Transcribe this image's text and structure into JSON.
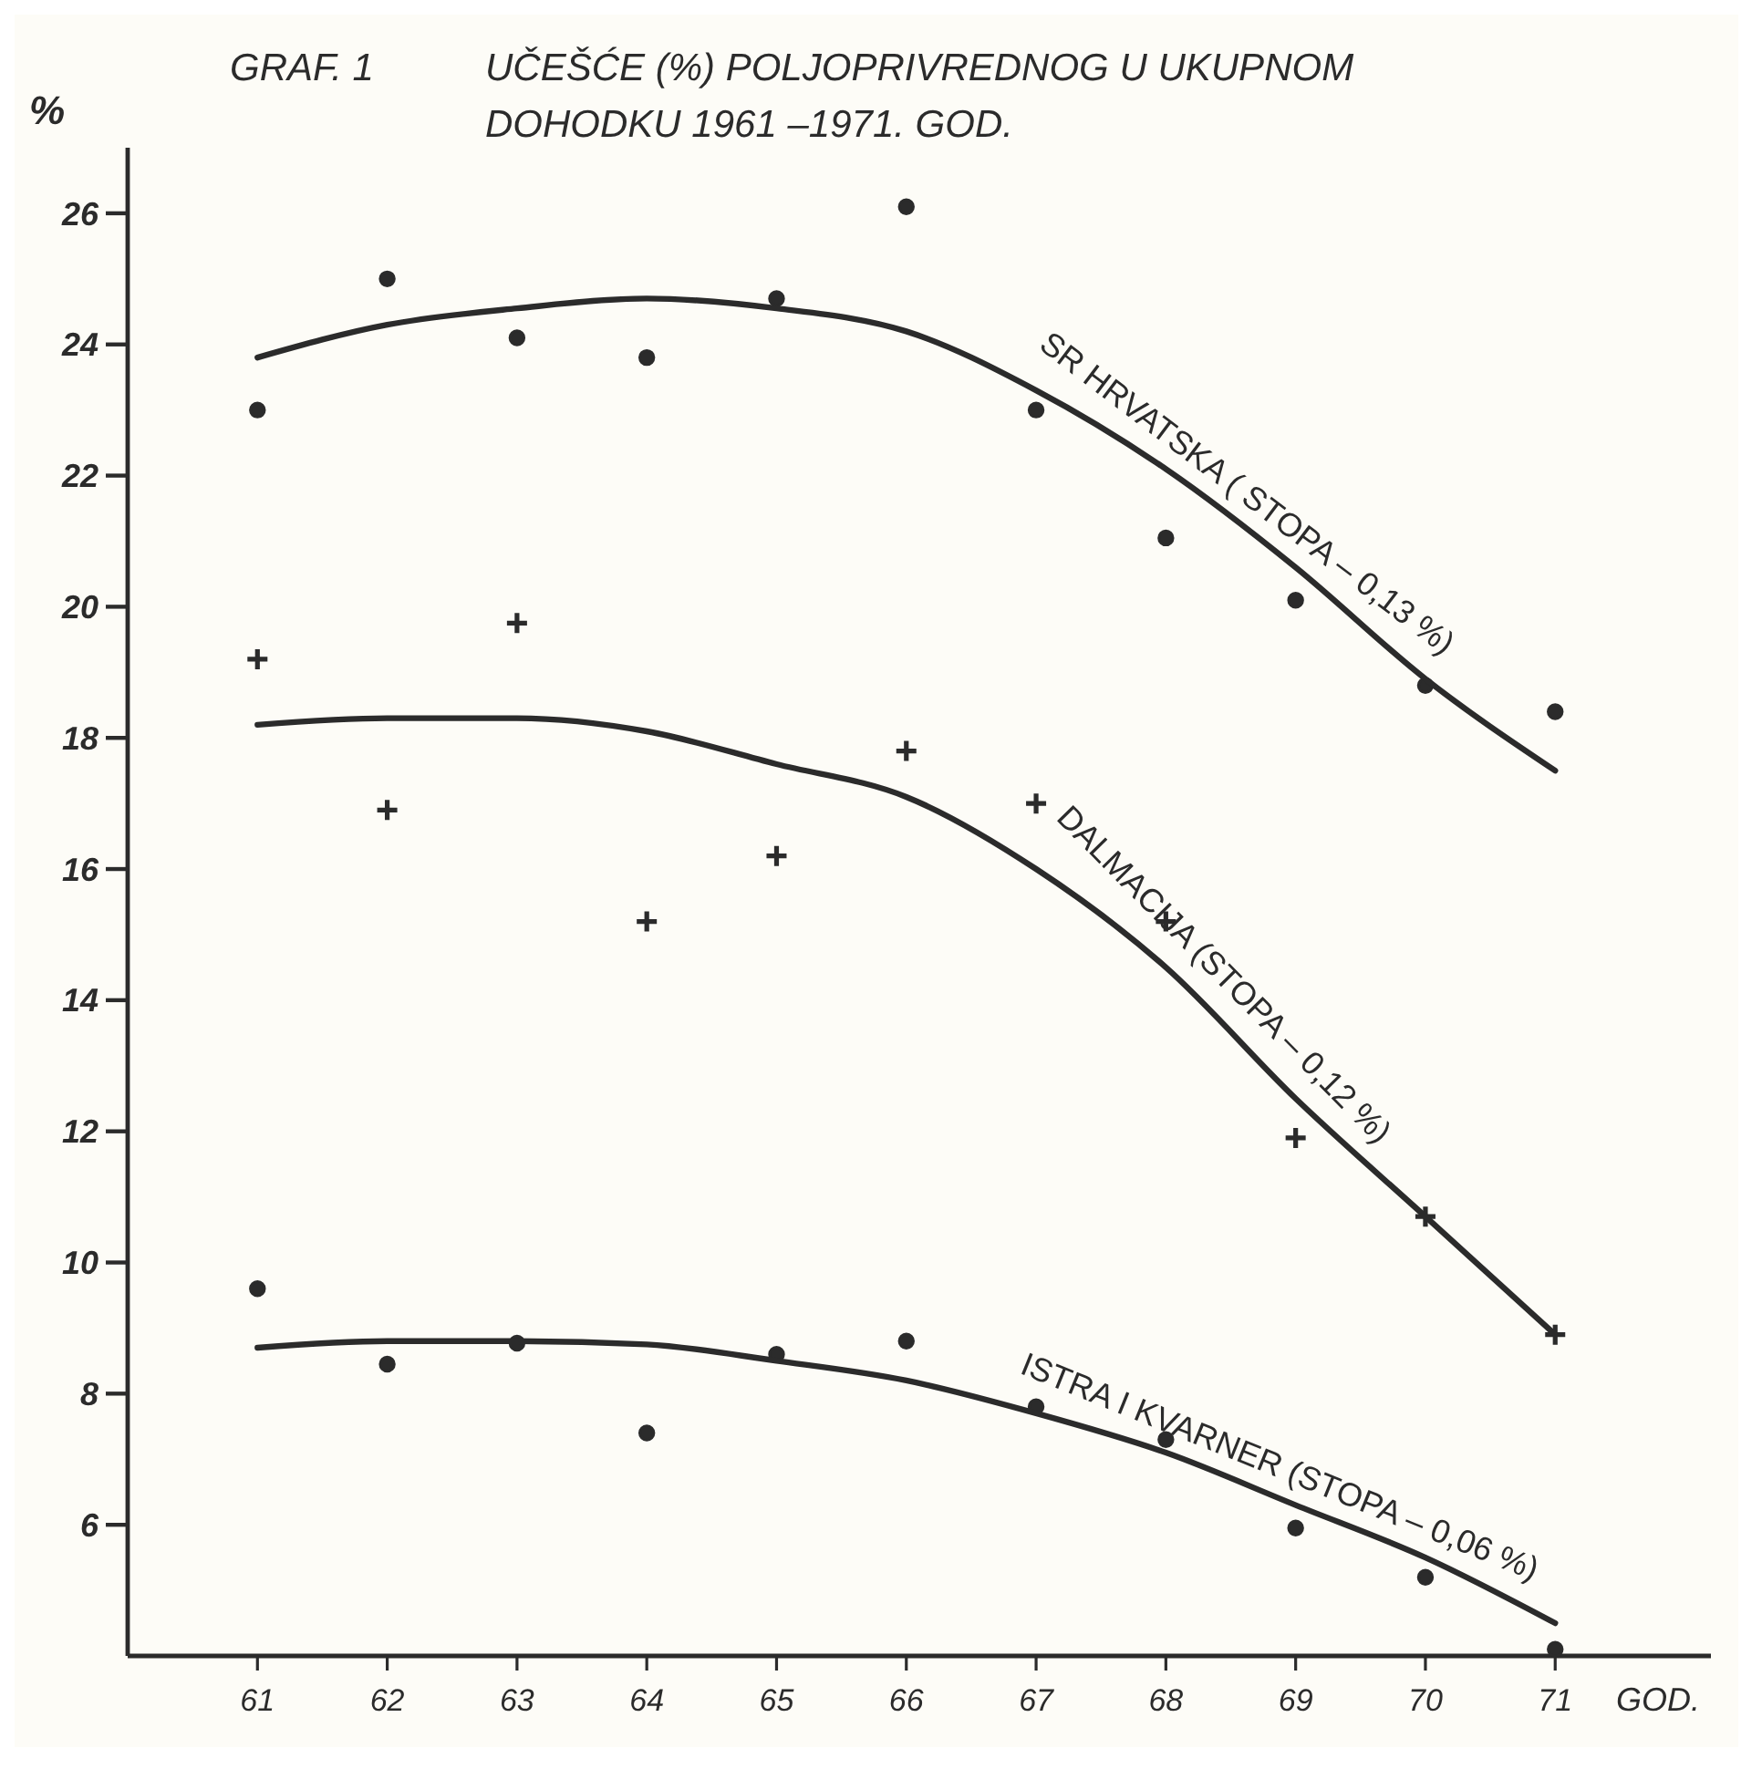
{
  "chart_data": {
    "type": "scatter",
    "title": "GRAF. 1",
    "subtitle": "UČEŠĆE (%) POLJOPRIVREDNOG U UKUPNOM DOHODKU 1961 –1971. GOD.",
    "xlabel": "GOD.",
    "ylabel": "%",
    "x": [
      61,
      62,
      63,
      64,
      65,
      66,
      67,
      68,
      69,
      70,
      71
    ],
    "xlim": [
      60,
      72.2
    ],
    "xticks": [
      61,
      62,
      63,
      64,
      65,
      66,
      67,
      68,
      69,
      70,
      71
    ],
    "ylim": [
      4,
      27
    ],
    "yticks": [
      6,
      8,
      10,
      12,
      14,
      16,
      18,
      20,
      22,
      24,
      26
    ],
    "grid": false,
    "series": [
      {
        "color": "#2b2b2b",
        "marker": "circle",
        "values": [
          23.0,
          25.0,
          24.1,
          23.8,
          24.7,
          26.1,
          23.0,
          21.05,
          20.1,
          18.8,
          18.4
        ]
      },
      {
        "color": "#2b2b2b",
        "marker": "cross",
        "values": [
          19.2,
          16.9,
          19.75,
          15.2,
          16.2,
          17.8,
          17.0,
          15.2,
          11.9,
          10.7,
          8.9
        ]
      },
      {
        "color": "#2b2b2b",
        "marker": "circle",
        "values": [
          9.6,
          8.45,
          8.77,
          7.4,
          8.6,
          8.8,
          7.8,
          7.3,
          5.95,
          5.2,
          4.1
        ]
      },
      {
        "type": "line",
        "color": "#2b2b2b",
        "values": [
          23.8,
          24.3,
          24.55,
          24.7,
          24.55,
          24.2,
          23.3,
          22.1,
          20.6,
          18.9,
          17.5
        ]
      },
      {
        "type": "line",
        "color": "#2b2b2b",
        "values": [
          18.2,
          18.3,
          18.3,
          18.1,
          17.6,
          17.1,
          16.0,
          14.5,
          12.5,
          10.7,
          8.9
        ]
      },
      {
        "type": "line",
        "color": "#2b2b2b",
        "values": [
          8.7,
          8.8,
          8.8,
          8.75,
          8.5,
          8.2,
          7.7,
          7.1,
          6.3,
          5.5,
          4.5
        ]
      }
    ],
    "annotations": [
      {
        "text": "SR HRVATSKA ( STOPA – 0,13 %)",
        "x": 68.5,
        "y": 21.4
      },
      {
        "text": "DALMACIJA (STOPA – 0,12 %)",
        "x": 68.3,
        "y": 14.1
      },
      {
        "text": "ISTRA I KVARNER (STOPA – 0,06 %)",
        "x": 68.8,
        "y": 6.5
      }
    ]
  }
}
